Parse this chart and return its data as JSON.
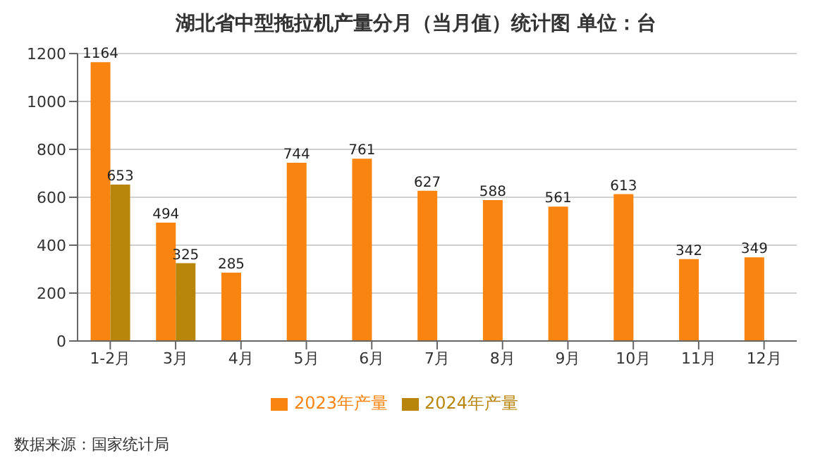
{
  "chart_data": {
    "type": "bar",
    "title": "湖北省中型拖拉机产量分月（当月值）统计图 单位：台",
    "categories": [
      "1-2月",
      "3月",
      "4月",
      "5月",
      "6月",
      "7月",
      "8月",
      "9月",
      "10月",
      "11月",
      "12月"
    ],
    "series": [
      {
        "name": "2023年产量",
        "color": "#f98510",
        "values": [
          1164,
          494,
          285,
          744,
          761,
          627,
          588,
          561,
          613,
          342,
          349
        ]
      },
      {
        "name": "2024年产量",
        "color": "#b8860b",
        "values": [
          653,
          325,
          null,
          null,
          null,
          null,
          null,
          null,
          null,
          null,
          null
        ]
      }
    ],
    "ylim": [
      0,
      1200
    ],
    "yticks": [
      0,
      200,
      400,
      600,
      800,
      1000,
      1200
    ],
    "grid": "y",
    "legend": "bottom",
    "data_labels": true,
    "annotations": [
      "数据来源：国家统计局"
    ]
  }
}
